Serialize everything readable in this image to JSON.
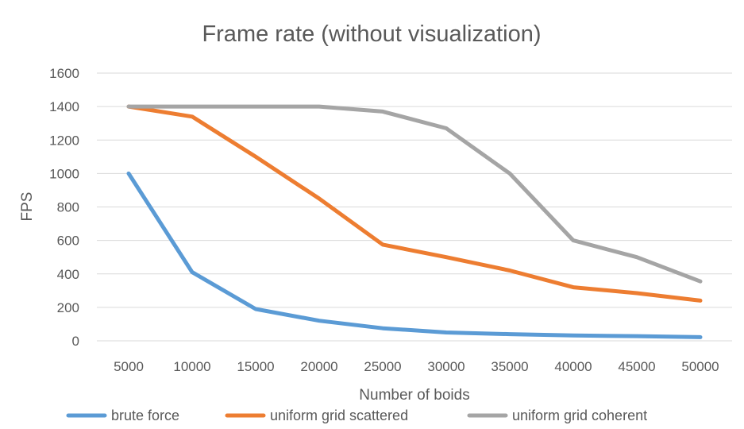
{
  "chart_data": {
    "type": "line",
    "title": "Frame rate (without visualization)",
    "xlabel": "Number of boids",
    "ylabel": "FPS",
    "x": [
      5000,
      10000,
      15000,
      20000,
      25000,
      30000,
      35000,
      40000,
      45000,
      50000
    ],
    "ylim": [
      0,
      1600
    ],
    "yticks": [
      0,
      200,
      400,
      600,
      800,
      1000,
      1200,
      1400,
      1600
    ],
    "grid": true,
    "legend": "bottom",
    "series": [
      {
        "name": "brute force",
        "color": "#5b9bd5",
        "values": [
          1000,
          410,
          190,
          120,
          75,
          50,
          40,
          32,
          28,
          22
        ]
      },
      {
        "name": "uniform grid scattered",
        "color": "#ed7d31",
        "values": [
          1400,
          1340,
          1100,
          850,
          575,
          500,
          420,
          320,
          285,
          240
        ]
      },
      {
        "name": "uniform grid coherent",
        "color": "#a5a5a5",
        "values": [
          1400,
          1400,
          1400,
          1400,
          1370,
          1270,
          1000,
          600,
          500,
          355
        ]
      }
    ]
  }
}
